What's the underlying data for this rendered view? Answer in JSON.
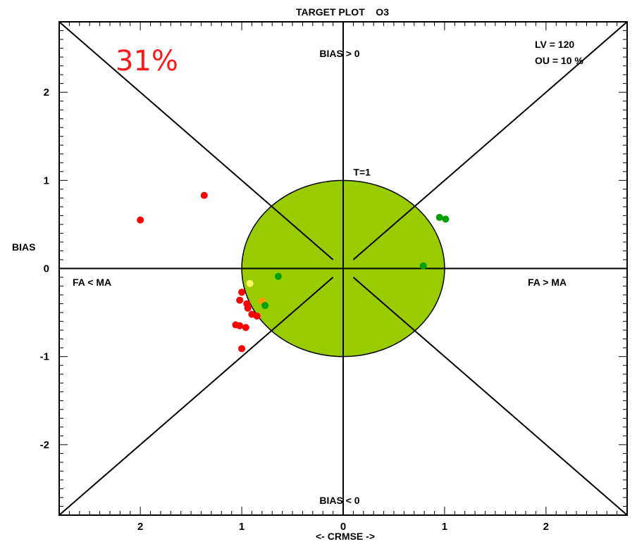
{
  "chart_data": {
    "type": "scatter",
    "title": "TARGET PLOT    O3",
    "xlabel": "<- CRMSE ->",
    "ylabel": "BIAS",
    "xlim": [
      -2.8,
      2.8
    ],
    "ylim": [
      -2.8,
      2.8
    ],
    "x_ticks": [
      {
        "value": -2,
        "label": "2"
      },
      {
        "value": -1,
        "label": "1"
      },
      {
        "value": 0,
        "label": "0"
      },
      {
        "value": 1,
        "label": "1"
      },
      {
        "value": 2,
        "label": "2"
      }
    ],
    "y_ticks": [
      {
        "value": -2,
        "label": "-2"
      },
      {
        "value": -1,
        "label": "-1"
      },
      {
        "value": 0,
        "label": "0"
      },
      {
        "value": 1,
        "label": "1"
      },
      {
        "value": 2,
        "label": "2"
      }
    ],
    "grid": false,
    "target_circle": {
      "radius": 1,
      "label": "T=1",
      "fill": "#99cc00"
    },
    "region_labels": {
      "top": "BIAS > 0",
      "bottom": "BIAS < 0",
      "left": "FA < MA",
      "right": "FA > MA"
    },
    "annotations": {
      "percentage": "31%",
      "lv": "LV = 120",
      "ou": "OU = 10 %"
    },
    "colors": {
      "red": "#ff0000",
      "green": "#00a000",
      "dark_green": "#008800",
      "yellow": "#ffff66",
      "orange": "#ff9900",
      "circle_fill": "#99cc00"
    },
    "points": [
      {
        "x": -2.0,
        "y": 0.55,
        "color": "red"
      },
      {
        "x": -1.37,
        "y": 0.83,
        "color": "red"
      },
      {
        "x": -1.0,
        "y": -0.27,
        "color": "red"
      },
      {
        "x": -1.02,
        "y": -0.36,
        "color": "red"
      },
      {
        "x": -0.95,
        "y": -0.4,
        "color": "red"
      },
      {
        "x": -0.94,
        "y": -0.45,
        "color": "red"
      },
      {
        "x": -0.9,
        "y": -0.52,
        "color": "red"
      },
      {
        "x": -0.85,
        "y": -0.54,
        "color": "red"
      },
      {
        "x": -1.06,
        "y": -0.64,
        "color": "red"
      },
      {
        "x": -1.02,
        "y": -0.65,
        "color": "red"
      },
      {
        "x": -0.96,
        "y": -0.67,
        "color": "red"
      },
      {
        "x": -1.0,
        "y": -0.91,
        "color": "red"
      },
      {
        "x": -0.92,
        "y": -0.17,
        "color": "yellow"
      },
      {
        "x": -0.8,
        "y": -0.37,
        "color": "orange"
      },
      {
        "x": -0.77,
        "y": -0.42,
        "color": "green"
      },
      {
        "x": -0.64,
        "y": -0.09,
        "color": "green"
      },
      {
        "x": 0.79,
        "y": 0.03,
        "color": "green"
      },
      {
        "x": 0.95,
        "y": 0.58,
        "color": "green"
      },
      {
        "x": 1.01,
        "y": 0.56,
        "color": "green"
      }
    ]
  }
}
